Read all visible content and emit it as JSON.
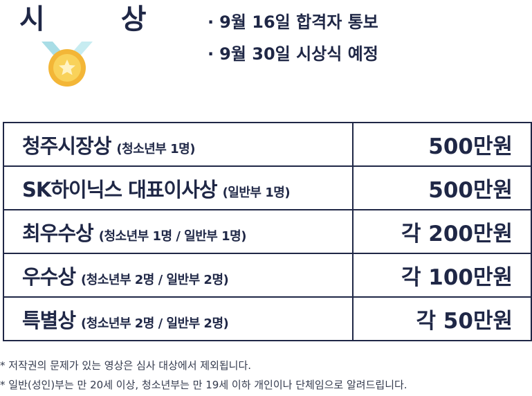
{
  "heading": "시 상",
  "notices": [
    {
      "bullet": "·",
      "text": "9월 16일 합격자 통보"
    },
    {
      "bullet": "·",
      "text": "9월 30일 시상식 예정"
    }
  ],
  "medal_icon": "gold-medal-with-star",
  "colors": {
    "text": "#1f2746",
    "medal_gold": "#f7c63b",
    "ribbon": "#a8dde6"
  },
  "awards": [
    {
      "title": "청주시장상",
      "note": "(청소년부 1명)",
      "prize": "500만원"
    },
    {
      "title": "SK하이닉스 대표이사상",
      "note": "(일반부 1명)",
      "prize": "500만원"
    },
    {
      "title": "최우수상",
      "note": "(청소년부 1명 / 일반부 1명)",
      "prize": "각 200만원"
    },
    {
      "title": "우수상",
      "note": "(청소년부 2명 / 일반부 2명)",
      "prize": "각 100만원"
    },
    {
      "title": "특별상",
      "note": "(청소년부 2명 / 일반부 2명)",
      "prize": "각 50만원"
    }
  ],
  "footnotes": [
    "* 저작권의 문제가 있는 영상은 심사 대상에서 제외됩니다.",
    "* 일반(성인)부는 만 20세 이상, 청소년부는 만 19세 이하 개인이나 단체임으로 알려드립니다."
  ]
}
